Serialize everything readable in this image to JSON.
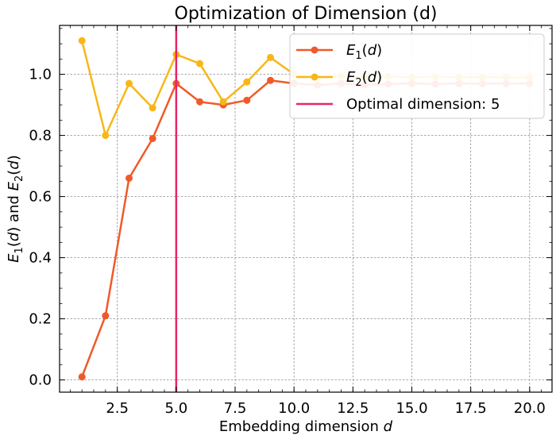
{
  "chart_data": {
    "type": "line",
    "title": "Optimization of Dimension (d)",
    "xlabel": "Embedding dimension d",
    "ylabel": "E1(d) and E2(d)",
    "xlim": [
      0.05,
      20.95
    ],
    "ylim": [
      -0.04,
      1.16
    ],
    "xticks": [
      2.5,
      5.0,
      7.5,
      10.0,
      12.5,
      15.0,
      17.5,
      20.0
    ],
    "xtick_labels": [
      "2.5",
      "5.0",
      "7.5",
      "10.0",
      "12.5",
      "15.0",
      "17.5",
      "20.0"
    ],
    "yticks": [
      0.0,
      0.2,
      0.4,
      0.6,
      0.8,
      1.0
    ],
    "ytick_labels": [
      "0.0",
      "0.2",
      "0.4",
      "0.6",
      "0.8",
      "1.0"
    ],
    "grid": true,
    "legend_position": "top-right",
    "x": [
      1,
      2,
      3,
      4,
      5,
      6,
      7,
      8,
      9,
      10,
      11,
      12,
      13,
      14,
      15,
      16,
      17,
      18,
      19,
      20
    ],
    "series": [
      {
        "name": "E1(d)",
        "color": "#f05a28",
        "values": [
          0.01,
          0.21,
          0.66,
          0.79,
          0.97,
          0.91,
          0.9,
          0.915,
          0.98,
          0.97,
          0.965,
          0.97,
          0.965,
          0.968,
          0.97,
          0.968,
          0.97,
          0.969,
          0.97,
          0.97
        ]
      },
      {
        "name": "E2(d)",
        "color": "#f7b718",
        "values": [
          1.11,
          0.8,
          0.97,
          0.89,
          1.065,
          1.035,
          0.91,
          0.975,
          1.055,
          1.0,
          0.99,
          0.995,
          0.99,
          0.993,
          0.99,
          0.992,
          0.99,
          0.991,
          0.99,
          0.99
        ]
      }
    ],
    "vline": {
      "x": 5,
      "label": "Optimal dimension: 5",
      "color": "#e8256b"
    }
  }
}
